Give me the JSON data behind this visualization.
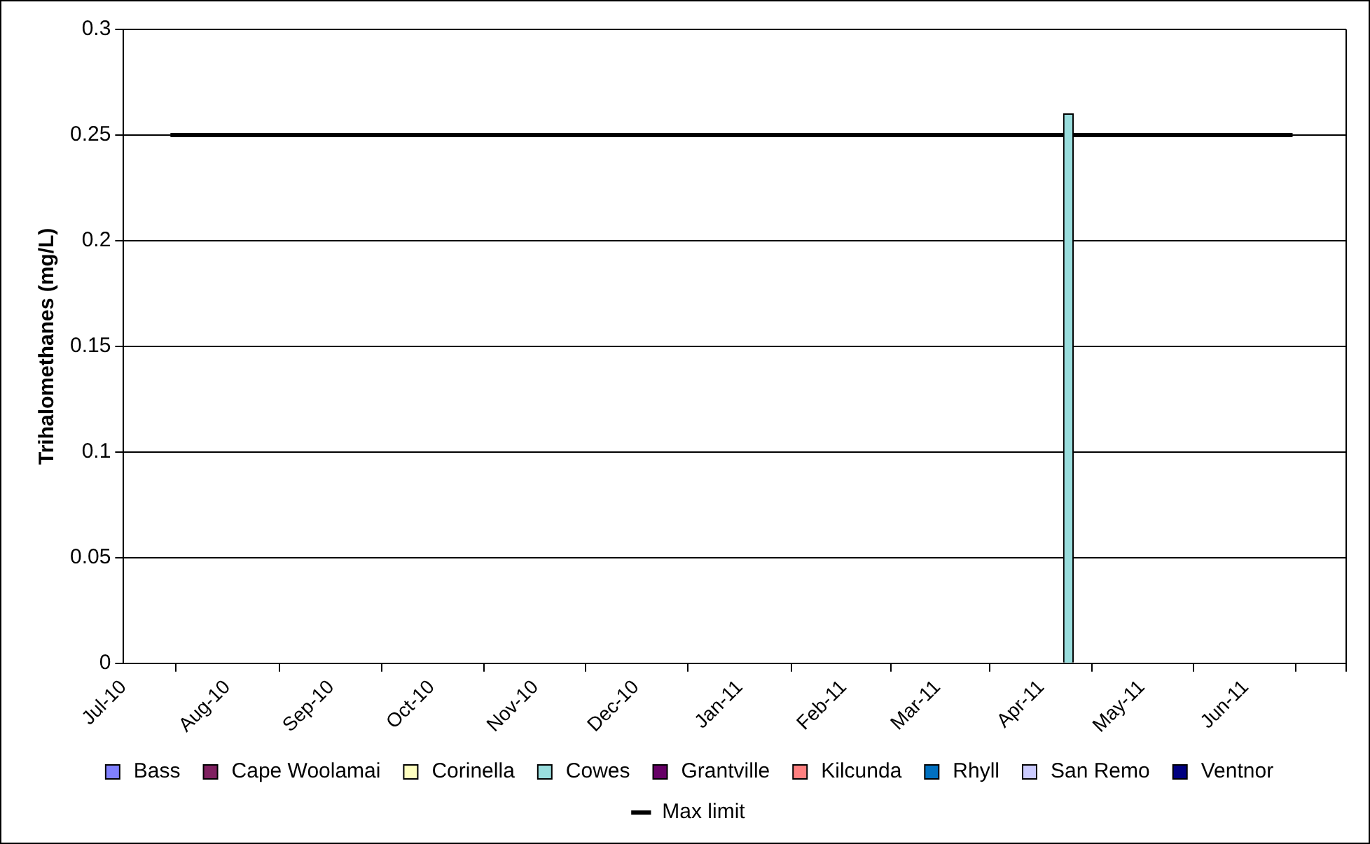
{
  "chart_data": {
    "type": "bar",
    "ylabel": "Trihalomethanes (mg/L)",
    "xlim": [
      "2010-07-01",
      "2011-07-01"
    ],
    "xticks": [
      {
        "value": "2010-07-01",
        "label": "Jul-10"
      },
      {
        "value": "2010-08-01",
        "label": "Aug-10"
      },
      {
        "value": "2010-09-01",
        "label": "Sep-10"
      },
      {
        "value": "2010-10-01",
        "label": "Oct-10"
      },
      {
        "value": "2010-11-01",
        "label": "Nov-10"
      },
      {
        "value": "2010-12-01",
        "label": "Dec-10"
      },
      {
        "value": "2011-01-01",
        "label": "Jan-11"
      },
      {
        "value": "2011-02-01",
        "label": "Feb-11"
      },
      {
        "value": "2011-03-01",
        "label": "Mar-11"
      },
      {
        "value": "2011-04-01",
        "label": "Apr-11"
      },
      {
        "value": "2011-05-01",
        "label": "May-11"
      },
      {
        "value": "2011-06-01",
        "label": "Jun-11"
      },
      {
        "value": "2011-07-01",
        "label": null
      }
    ],
    "ylim": [
      0,
      0.3
    ],
    "yticks": [
      0,
      0.05,
      0.1,
      0.15,
      0.2,
      0.25,
      0.3
    ],
    "x": [
      "2011-04-12"
    ],
    "series": [
      {
        "name": "Bass",
        "color": "#8080ff",
        "values": [
          null
        ]
      },
      {
        "name": "Cape Woolamai",
        "color": "#7f2060",
        "values": [
          null
        ]
      },
      {
        "name": "Corinella",
        "color": "#ffffc0",
        "values": [
          null
        ]
      },
      {
        "name": "Cowes",
        "color": "#99dddd",
        "values": [
          0.26
        ]
      },
      {
        "name": "Grantville",
        "color": "#660066",
        "values": [
          null
        ]
      },
      {
        "name": "Kilcunda",
        "color": "#ff8080",
        "values": [
          null
        ]
      },
      {
        "name": "Rhyll",
        "color": "#0070c0",
        "values": [
          null
        ]
      },
      {
        "name": "San Remo",
        "color": "#ccccff",
        "values": [
          null
        ]
      },
      {
        "name": "Ventnor",
        "color": "#000080",
        "values": [
          null
        ]
      },
      {
        "name": "Max limit",
        "type": "line",
        "color": "#000000",
        "x": [
          "2010-07-15",
          "2011-06-15"
        ],
        "values": [
          0.25,
          0.25
        ],
        "marker": "none",
        "line_style": "solid"
      }
    ],
    "grid": "y",
    "legend": "bottom"
  }
}
